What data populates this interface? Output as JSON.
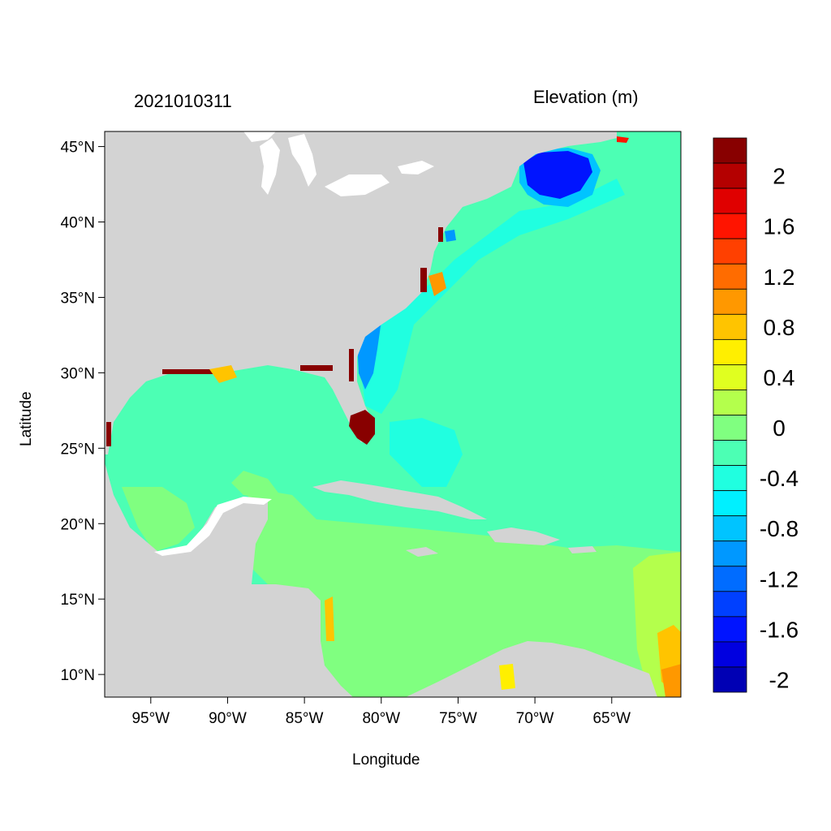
{
  "header": {
    "date": "2021010311",
    "variable": "Elevation (m)"
  },
  "axes": {
    "xlabel": "Longitude",
    "ylabel": "Latitude",
    "lon_range": [
      -98,
      -60.5
    ],
    "lat_range": [
      8.5,
      46
    ],
    "lon_ticks": [
      {
        "value": -95,
        "label": "95°W"
      },
      {
        "value": -90,
        "label": "90°W"
      },
      {
        "value": -85,
        "label": "85°W"
      },
      {
        "value": -80,
        "label": "80°W"
      },
      {
        "value": -75,
        "label": "75°W"
      },
      {
        "value": -70,
        "label": "70°W"
      },
      {
        "value": -65,
        "label": "65°W"
      }
    ],
    "lat_ticks": [
      {
        "value": 45,
        "label": "45°N"
      },
      {
        "value": 40,
        "label": "40°N"
      },
      {
        "value": 35,
        "label": "35°N"
      },
      {
        "value": 30,
        "label": "30°N"
      },
      {
        "value": 25,
        "label": "25°N"
      },
      {
        "value": 20,
        "label": "20°N"
      },
      {
        "value": 15,
        "label": "15°N"
      },
      {
        "value": 10,
        "label": "10°N"
      }
    ]
  },
  "colorbar": {
    "colors": [
      "#880000",
      "#b40000",
      "#e00000",
      "#ff1400",
      "#ff4000",
      "#ff6c00",
      "#ff9800",
      "#ffc400",
      "#ffef00",
      "#e0ff20",
      "#b4ff4c",
      "#80ff80",
      "#4cffb4",
      "#20ffe0",
      "#00f0ff",
      "#00c4ff",
      "#0098ff",
      "#006cff",
      "#0040ff",
      "#0014ff",
      "#0000e0",
      "#0000b4"
    ],
    "labels": [
      {
        "value": 2,
        "label": "2"
      },
      {
        "value": 1.6,
        "label": "1.6"
      },
      {
        "value": 1.2,
        "label": "1.2"
      },
      {
        "value": 0.8,
        "label": "0.8"
      },
      {
        "value": 0.4,
        "label": "0.4"
      },
      {
        "value": 0,
        "label": "0"
      },
      {
        "value": -0.4,
        "label": "-0.4"
      },
      {
        "value": -0.8,
        "label": "-0.8"
      },
      {
        "value": -1.2,
        "label": "-1.2"
      },
      {
        "value": -1.6,
        "label": "-1.6"
      },
      {
        "value": -2,
        "label": "-2"
      }
    ]
  },
  "colors": {
    "land": "#d3d3d3",
    "ocean_base": "#4cffb4",
    "caribbean": "#80ff80",
    "coastal_blue": "#20ffe0",
    "gulf_of_maine": "#0014ff"
  }
}
